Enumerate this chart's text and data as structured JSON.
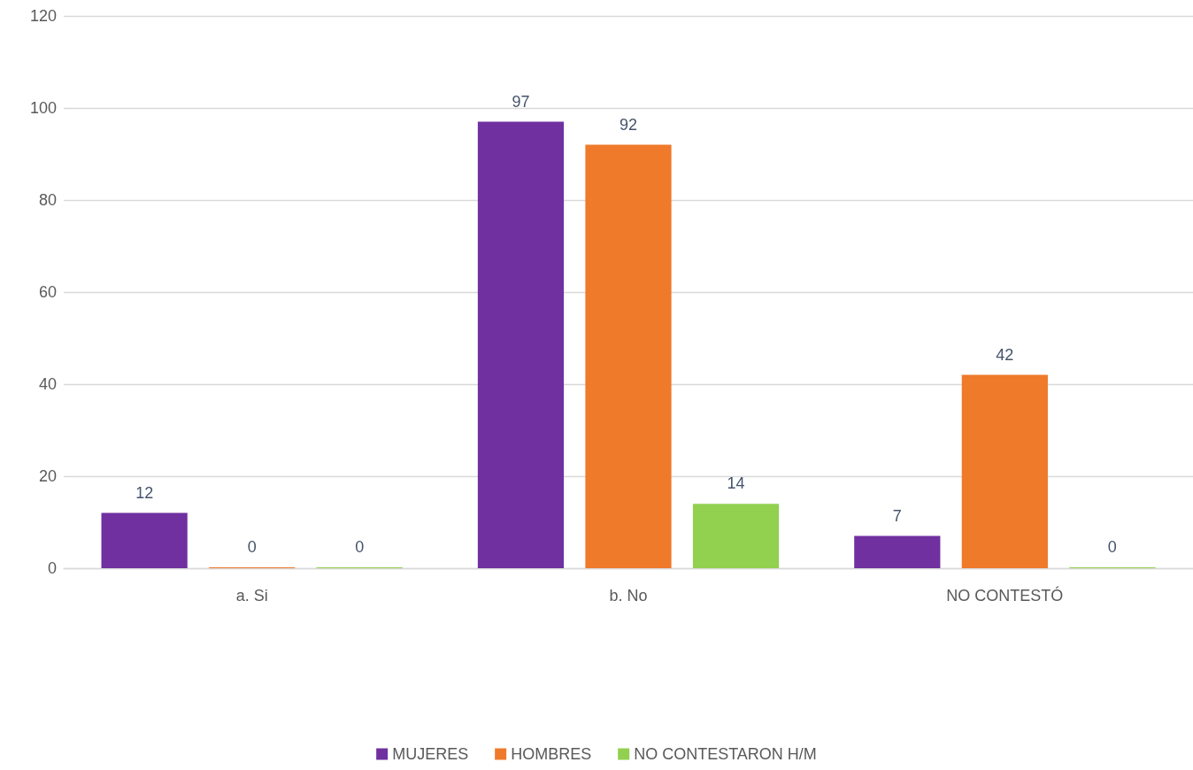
{
  "chart_data": {
    "type": "bar",
    "categories": [
      "a. Si",
      "b. No",
      "NO CONTESTÓ"
    ],
    "series": [
      {
        "name": "MUJERES",
        "color": "#7030a0",
        "values": [
          12,
          97,
          7
        ]
      },
      {
        "name": "HOMBRES",
        "color": "#ef7a2a",
        "values": [
          0,
          92,
          42
        ]
      },
      {
        "name": "NO CONTESTARON H/M",
        "color": "#92d050",
        "values": [
          0,
          14,
          0
        ]
      }
    ],
    "ylim": [
      0,
      120
    ],
    "yticks": [
      0,
      20,
      40,
      60,
      80,
      100,
      120
    ],
    "grid": "y",
    "legend": "bottom",
    "data_labels": true
  }
}
